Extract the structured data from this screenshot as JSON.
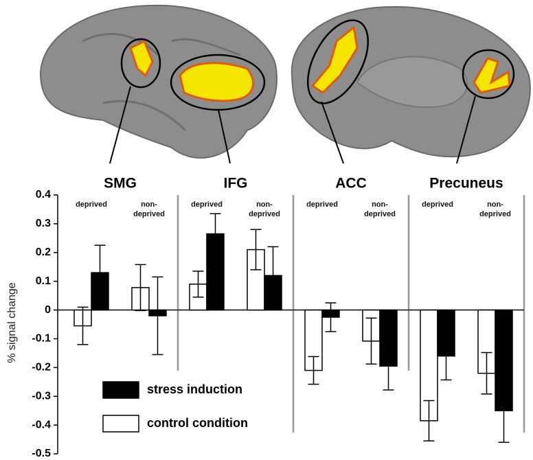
{
  "chart_data": {
    "type": "bar",
    "y_label": "% signal change",
    "groups": [
      "SMG",
      "IFG",
      "ACC",
      "Precuneus"
    ],
    "categories": [
      "deprived",
      "non-deprived",
      "deprived",
      "non-deprived",
      "deprived",
      "non-deprived",
      "deprived",
      "non-deprived"
    ],
    "series": [
      {
        "name": "control condition",
        "color": "#ffffff",
        "values": [
          -0.055,
          0.078,
          0.09,
          0.21,
          -0.21,
          -0.108,
          -0.385,
          -0.22
        ],
        "errors": [
          0.065,
          0.08,
          0.045,
          0.07,
          0.048,
          0.08,
          0.07,
          0.072
        ]
      },
      {
        "name": "stress induction",
        "color": "#000000",
        "values": [
          0.13,
          -0.02,
          0.265,
          0.12,
          -0.025,
          -0.195,
          -0.16,
          -0.35
        ],
        "errors": [
          0.095,
          0.135,
          0.07,
          0.1,
          0.05,
          0.083,
          0.083,
          0.11
        ]
      }
    ],
    "ylim": [
      -0.5,
      0.4
    ],
    "yticks": [
      -0.5,
      -0.4,
      -0.3,
      -0.2,
      -0.1,
      0,
      0.1,
      0.2,
      0.3,
      0.4
    ],
    "legend": "lower left"
  }
}
